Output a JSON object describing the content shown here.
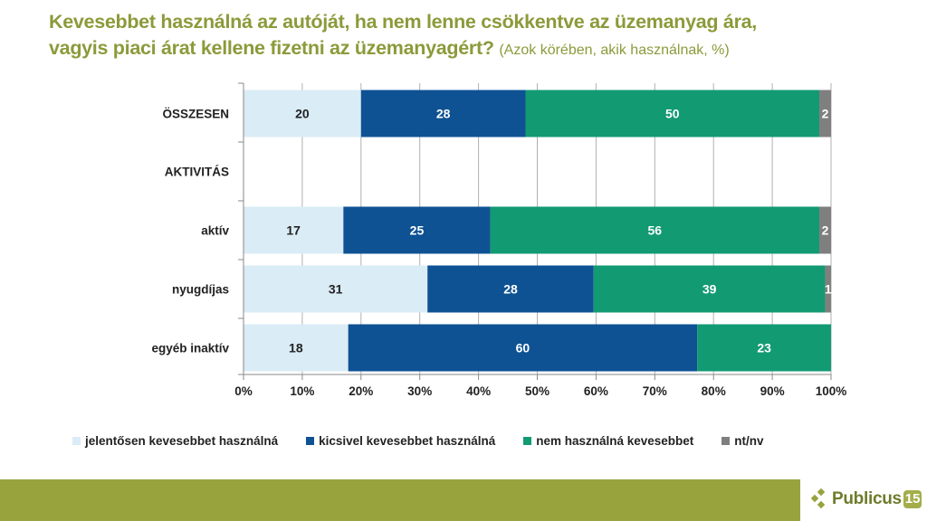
{
  "title": {
    "main": "Kevesebbet használná az autóját, ha nem lenne csökkentve az üzemanyag ára, vagyis piaci árat kellene fizetni az üzemanyagért?",
    "line1": "Kevesebbet használná az autóját, ha nem lenne csökkentve az üzemanyag ára,",
    "line2": "vagyis piaci árat kellene fizetni az üzemanyagért?",
    "subtitle": "(Azok körében, akik használnak, %)"
  },
  "colors": {
    "title": "#8c9a3a",
    "footer": "#98a33e",
    "series": [
      "#daecf6",
      "#0e5294",
      "#129a73",
      "#7f7f7f"
    ]
  },
  "chart_data": {
    "type": "bar",
    "orientation": "horizontal",
    "stacked": "percent",
    "title": "Kevesebbet használná az autóját, ha nem lenne csökkentve az üzemanyag ára, vagyis piaci árat kellene fizetni az üzemanyagért? (Azok körében, akik használnak, %)",
    "categories": [
      "ÖSSZESEN",
      "AKTIVITÁS",
      "aktív",
      "nyugdíjas",
      "egyéb inaktív"
    ],
    "category_styles": [
      "header",
      "header",
      "normal",
      "normal",
      "normal"
    ],
    "series": [
      {
        "name": "jelentősen kevesebbet használná",
        "values": [
          20,
          null,
          17,
          31,
          18
        ]
      },
      {
        "name": "kicsivel kevesebbet használná",
        "values": [
          28,
          null,
          25,
          28,
          60
        ]
      },
      {
        "name": "nem használná kevesebbet",
        "values": [
          50,
          null,
          56,
          39,
          23
        ]
      },
      {
        "name": "nt/nv",
        "values": [
          2,
          null,
          2,
          1,
          null
        ]
      }
    ],
    "xlabel": "",
    "ylabel": "",
    "xlim": [
      0,
      100
    ],
    "xticks": [
      "0%",
      "10%",
      "20%",
      "30%",
      "40%",
      "50%",
      "60%",
      "70%",
      "80%",
      "90%",
      "100%"
    ],
    "grid": true,
    "legend_position": "bottom"
  },
  "logo": {
    "text": "Publicus",
    "number": "15"
  }
}
